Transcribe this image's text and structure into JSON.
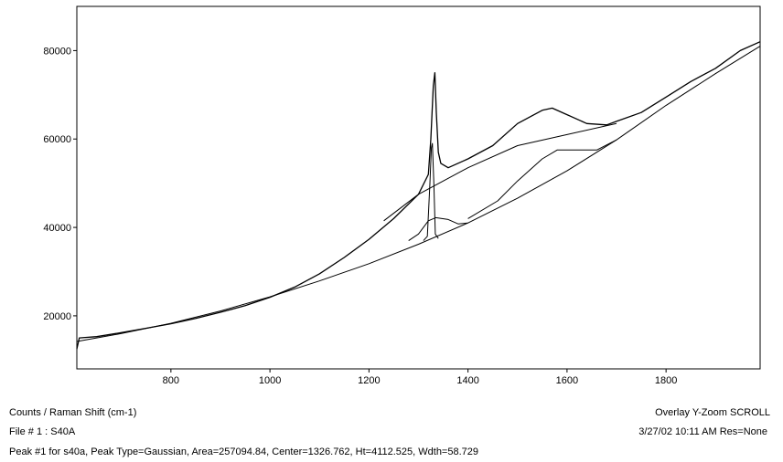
{
  "status": {
    "axes_label": "Counts / Raman Shift (cm-1)",
    "mode": "Overlay Y-Zoom SCROLL",
    "file": "File # 1 : S40A",
    "datetime": "3/27/02  10:11 AM  Res=None",
    "peak": "Peak #1 for s40a, Peak Type=Gaussian, Area=257094.84, Center=1326.762, Ht=4112.525, Wdth=58.729"
  },
  "chart_data": {
    "type": "line",
    "title": "",
    "xlabel": "",
    "ylabel": "",
    "xlim": [
      610,
      1990
    ],
    "ylim": [
      8000,
      90000
    ],
    "grid": false,
    "x_ticks": [
      800,
      1000,
      1200,
      1400,
      1600,
      1800
    ],
    "y_ticks": [
      20000,
      40000,
      60000,
      80000
    ],
    "series": [
      {
        "role": "measured spectrum",
        "points": [
          [
            610,
            12500
          ],
          [
            615,
            15000
          ],
          [
            650,
            15300
          ],
          [
            700,
            16200
          ],
          [
            750,
            17200
          ],
          [
            800,
            18200
          ],
          [
            850,
            19400
          ],
          [
            900,
            20800
          ],
          [
            950,
            22300
          ],
          [
            1000,
            24200
          ],
          [
            1050,
            26500
          ],
          [
            1100,
            29500
          ],
          [
            1150,
            33200
          ],
          [
            1200,
            37300
          ],
          [
            1250,
            42000
          ],
          [
            1300,
            47500
          ],
          [
            1320,
            52000
          ],
          [
            1325,
            60000
          ],
          [
            1330,
            72000
          ],
          [
            1333,
            75000
          ],
          [
            1336,
            66000
          ],
          [
            1340,
            57000
          ],
          [
            1345,
            54500
          ],
          [
            1360,
            53500
          ],
          [
            1400,
            55500
          ],
          [
            1450,
            58500
          ],
          [
            1500,
            63500
          ],
          [
            1550,
            66500
          ],
          [
            1570,
            67000
          ],
          [
            1600,
            65500
          ],
          [
            1640,
            63500
          ],
          [
            1680,
            63200
          ],
          [
            1700,
            64000
          ],
          [
            1750,
            66000
          ],
          [
            1800,
            69500
          ],
          [
            1850,
            73000
          ],
          [
            1900,
            76000
          ],
          [
            1950,
            80000
          ],
          [
            1990,
            82000
          ]
        ]
      },
      {
        "role": "baseline",
        "points": [
          [
            610,
            14200
          ],
          [
            700,
            16000
          ],
          [
            800,
            18300
          ],
          [
            900,
            21100
          ],
          [
            1000,
            24300
          ],
          [
            1100,
            27900
          ],
          [
            1200,
            31800
          ],
          [
            1300,
            36200
          ],
          [
            1400,
            41000
          ],
          [
            1500,
            46600
          ],
          [
            1600,
            52800
          ],
          [
            1700,
            59800
          ],
          [
            1800,
            67600
          ],
          [
            1900,
            74800
          ],
          [
            1990,
            81000
          ]
        ]
      },
      {
        "role": "fit envelope",
        "points": [
          [
            1230,
            41500
          ],
          [
            1300,
            47500
          ],
          [
            1400,
            53500
          ],
          [
            1500,
            58500
          ],
          [
            1600,
            61000
          ],
          [
            1700,
            63500
          ]
        ]
      },
      {
        "role": "peak 1 (Gaussian)",
        "points": [
          [
            1310,
            37000
          ],
          [
            1318,
            38000
          ],
          [
            1323,
            50000
          ],
          [
            1326,
            58000
          ],
          [
            1328,
            59000
          ],
          [
            1331,
            50000
          ],
          [
            1334,
            38500
          ],
          [
            1340,
            37500
          ]
        ]
      },
      {
        "role": "peak 2",
        "points": [
          [
            1280,
            37000
          ],
          [
            1300,
            38500
          ],
          [
            1320,
            41500
          ],
          [
            1335,
            42200
          ],
          [
            1360,
            41800
          ],
          [
            1380,
            40800
          ],
          [
            1400,
            41000
          ]
        ]
      },
      {
        "role": "peak 3",
        "points": [
          [
            1400,
            42000
          ],
          [
            1460,
            46000
          ],
          [
            1500,
            50500
          ],
          [
            1550,
            55500
          ],
          [
            1580,
            57500
          ],
          [
            1600,
            57500
          ],
          [
            1660,
            57500
          ],
          [
            1700,
            59800
          ]
        ]
      }
    ]
  }
}
